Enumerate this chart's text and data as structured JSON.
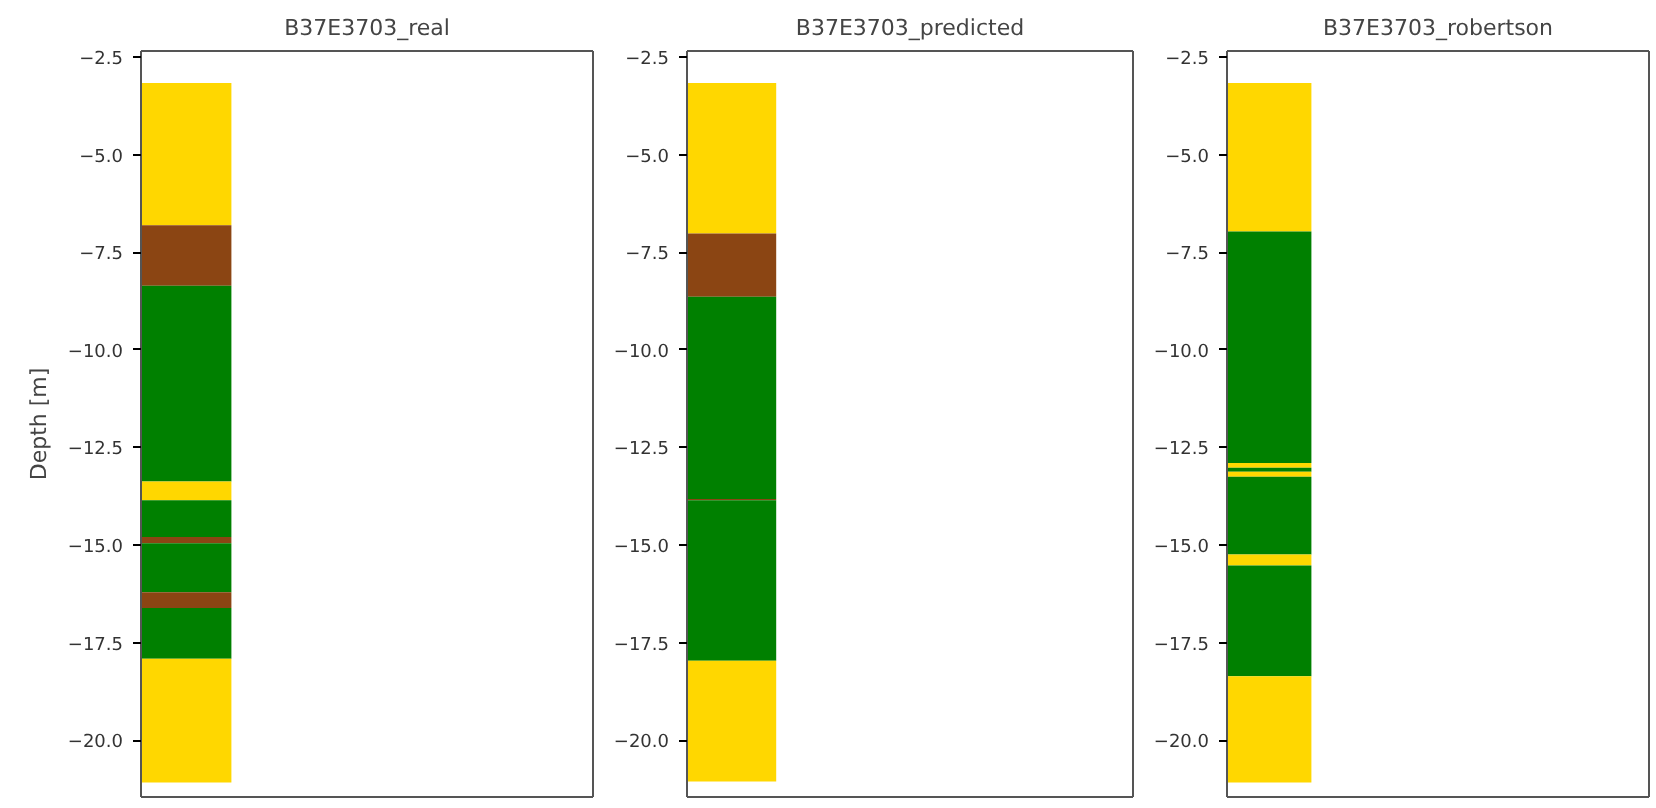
{
  "chart_data": [
    {
      "type": "bar",
      "title": "B37E3703_real",
      "ylabel": "Depth [m]",
      "categories": [
        null
      ],
      "ylim": [
        -21.45,
        -2.35
      ],
      "yticks": [
        {
          "value": -2.5,
          "label": "−2.5"
        },
        {
          "value": -5,
          "label": "−5.0"
        },
        {
          "value": -7.5,
          "label": "−7.5"
        },
        {
          "value": -10,
          "label": "−10.0"
        },
        {
          "value": -12.5,
          "label": "−12.5"
        },
        {
          "value": -15,
          "label": "−15.0"
        },
        {
          "value": -17.5,
          "label": "−17.5"
        },
        {
          "value": -20,
          "label": "−20.0"
        }
      ],
      "tick_labels": "y",
      "grid": false,
      "series": [
        {
          "color": "#ffd700",
          "values": [
            3.64
          ],
          "base": [
            -6.81
          ]
        },
        {
          "color": "#8b4513",
          "values": [
            1.55
          ],
          "base": [
            -8.36
          ]
        },
        {
          "color": "#008000",
          "values": [
            5.01
          ],
          "base": [
            -13.37
          ]
        },
        {
          "color": "#ffd700",
          "values": [
            0.48
          ],
          "base": [
            -13.85
          ]
        },
        {
          "color": "#008000",
          "values": [
            0.94
          ],
          "base": [
            -14.79
          ]
        },
        {
          "color": "#8b4513",
          "values": [
            0.16
          ],
          "base": [
            -14.95
          ]
        },
        {
          "color": "#008000",
          "values": [
            1.26
          ],
          "base": [
            -16.21
          ]
        },
        {
          "color": "#8b4513",
          "values": [
            0.4
          ],
          "base": [
            -16.61
          ]
        },
        {
          "color": "#008000",
          "values": [
            1.3
          ],
          "base": [
            -17.91
          ]
        },
        {
          "color": "#ffd700",
          "values": [
            3.17
          ],
          "base": [
            -21.08
          ]
        }
      ]
    },
    {
      "type": "bar",
      "title": "B37E3703_predicted",
      "categories": [
        null
      ],
      "ylim": [
        -21.45,
        -2.35
      ],
      "yticks": [
        {
          "value": -2.5,
          "label": "−2.5"
        },
        {
          "value": -5,
          "label": "−5.0"
        },
        {
          "value": -7.5,
          "label": "−7.5"
        },
        {
          "value": -10,
          "label": "−10.0"
        },
        {
          "value": -12.5,
          "label": "−12.5"
        },
        {
          "value": -15,
          "label": "−15.0"
        },
        {
          "value": -17.5,
          "label": "−17.5"
        },
        {
          "value": -20,
          "label": "−20.0"
        }
      ],
      "tick_labels": "y",
      "grid": false,
      "series": [
        {
          "color": "#ffd700",
          "values": [
            3.85
          ],
          "base": [
            -7.02
          ]
        },
        {
          "color": "#8b4513",
          "values": [
            1.62
          ],
          "base": [
            -8.64
          ]
        },
        {
          "color": "#008000",
          "values": [
            5.18
          ],
          "base": [
            -13.82
          ]
        },
        {
          "color": "#8b4513",
          "values": [
            0.03
          ],
          "base": [
            -13.85
          ]
        },
        {
          "color": "#008000",
          "values": [
            4.11
          ],
          "base": [
            -17.96
          ]
        },
        {
          "color": "#ffd700",
          "values": [
            3.09
          ],
          "base": [
            -21.05
          ]
        }
      ]
    },
    {
      "type": "bar",
      "title": "B37E3703_robertson",
      "categories": [
        null
      ],
      "ylim": [
        -21.45,
        -2.35
      ],
      "yticks": [
        {
          "value": -2.5,
          "label": "−2.5"
        },
        {
          "value": -5,
          "label": "−5.0"
        },
        {
          "value": -7.5,
          "label": "−7.5"
        },
        {
          "value": -10,
          "label": "−10.0"
        },
        {
          "value": -12.5,
          "label": "−12.5"
        },
        {
          "value": -15,
          "label": "−15.0"
        },
        {
          "value": -17.5,
          "label": "−17.5"
        },
        {
          "value": -20,
          "label": "−20.0"
        }
      ],
      "tick_labels": "y",
      "grid": false,
      "series": [
        {
          "color": "#ffd700",
          "values": [
            3.8
          ],
          "base": [
            -6.97
          ]
        },
        {
          "color": "#008000",
          "values": [
            5.93
          ],
          "base": [
            -12.9
          ]
        },
        {
          "color": "#ffd700",
          "values": [
            0.12
          ],
          "base": [
            -13.02
          ]
        },
        {
          "color": "#008000",
          "values": [
            0.1
          ],
          "base": [
            -13.12
          ]
        },
        {
          "color": "#ffd700",
          "values": [
            0.13
          ],
          "base": [
            -13.25
          ]
        },
        {
          "color": "#008000",
          "values": [
            1.99
          ],
          "base": [
            -15.24
          ]
        },
        {
          "color": "#ffd700",
          "values": [
            0.28
          ],
          "base": [
            -15.52
          ]
        },
        {
          "color": "#008000",
          "values": [
            2.84
          ],
          "base": [
            -18.36
          ]
        },
        {
          "color": "#ffd700",
          "values": [
            2.72
          ],
          "base": [
            -21.08
          ]
        }
      ]
    }
  ]
}
